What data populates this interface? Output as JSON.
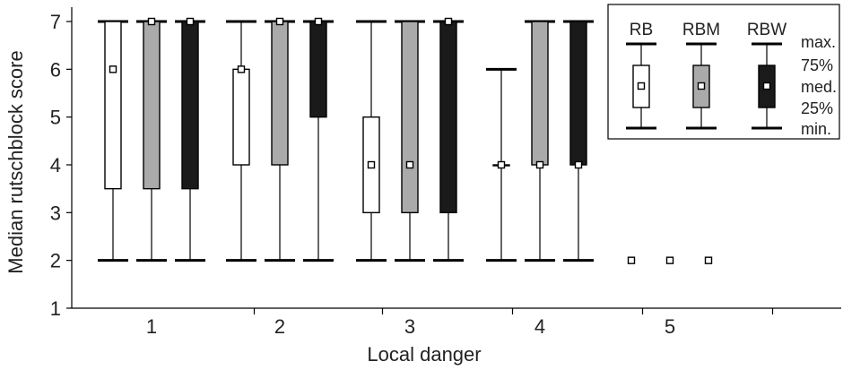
{
  "chart_data": {
    "type": "boxplot",
    "xlabel": "Local danger",
    "ylabel": "Median rutschblock score",
    "ylim": [
      1,
      7
    ],
    "yticks": [
      1,
      2,
      3,
      4,
      5,
      6,
      7
    ],
    "categories": [
      "1",
      "2",
      "3",
      "4",
      "5"
    ],
    "series": [
      {
        "name": "RB",
        "fill": "#ffffff",
        "boxes": [
          {
            "min": 2,
            "q1": 3.5,
            "median": 6,
            "q3": 7,
            "max": 7
          },
          {
            "min": 2,
            "q1": 4,
            "median": 6,
            "q3": 6,
            "max": 7
          },
          {
            "min": 2,
            "q1": 3,
            "median": 4,
            "q3": 5,
            "max": 7
          },
          {
            "min": 2,
            "q1": 4,
            "median": 4,
            "q3": 4,
            "max": 6
          },
          {
            "median": 2
          }
        ]
      },
      {
        "name": "RBM",
        "fill": "#aaaaaa",
        "boxes": [
          {
            "min": 2,
            "q1": 3.5,
            "median": 7,
            "q3": 7,
            "max": 7
          },
          {
            "min": 2,
            "q1": 4,
            "median": 7,
            "q3": 7,
            "max": 7
          },
          {
            "min": 2,
            "q1": 3,
            "median": 4,
            "q3": 7,
            "max": 7
          },
          {
            "min": 2,
            "q1": 4,
            "median": 4,
            "q3": 7,
            "max": 7
          },
          {
            "median": 2
          }
        ]
      },
      {
        "name": "RBW",
        "fill": "#1a1a1a",
        "boxes": [
          {
            "min": 2,
            "q1": 3.5,
            "median": 7,
            "q3": 7,
            "max": 7
          },
          {
            "min": 2,
            "q1": 5,
            "median": 7,
            "q3": 7,
            "max": 7
          },
          {
            "min": 2,
            "q1": 3,
            "median": 7,
            "q3": 7,
            "max": 7
          },
          {
            "min": 2,
            "q1": 4,
            "median": 4,
            "q3": 7,
            "max": 7
          },
          {
            "median": 2
          }
        ]
      }
    ],
    "legend": {
      "position": "top-right",
      "labels": [
        "max.",
        "75%",
        "med.",
        "25%",
        "min."
      ]
    }
  }
}
